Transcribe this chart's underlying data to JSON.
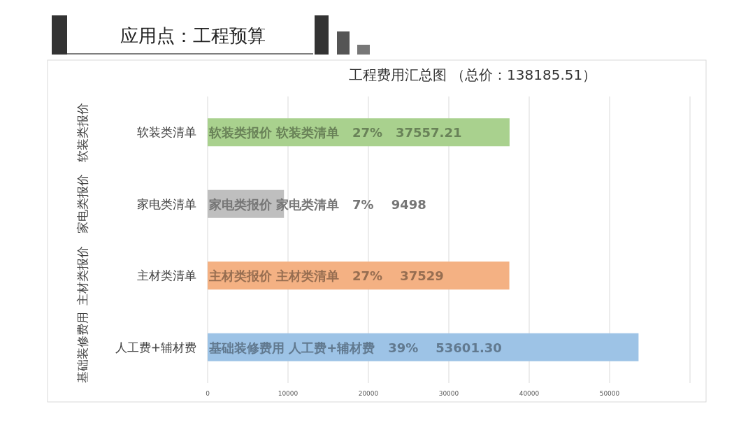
{
  "chart_data": {
    "type": "bar",
    "orientation": "horizontal",
    "title": "应用点：工程预算",
    "subtitle": "工程费用汇总图 （总价：138185.51）",
    "categories": [
      "软装类清单",
      "家电类清单",
      "主材类清单",
      "人工费+辅材费"
    ],
    "values": [
      37557.21,
      9498,
      37529,
      53601.3
    ],
    "colors": [
      "#a9d18e",
      "#bfbfbf",
      "#f4b183",
      "#9dc3e6"
    ],
    "value_labels": [
      "软装类报价 软装类清单   27%   37557.21",
      "家电类报价 家电类清单   7%    9498",
      "主材类报价 主材类清单   27%    37529",
      "基础装修费用 人工费+辅材费   39%    53601.30"
    ],
    "annotations": [
      "软装类报价",
      "家电类报价",
      "主材类报价",
      "基础装修费用"
    ],
    "xlim": [
      0,
      60000
    ],
    "xticks": [
      0,
      10000,
      20000,
      30000,
      40000,
      50000,
      {
        "value": 60000,
        "label": null
      }
    ],
    "grid": "x"
  }
}
